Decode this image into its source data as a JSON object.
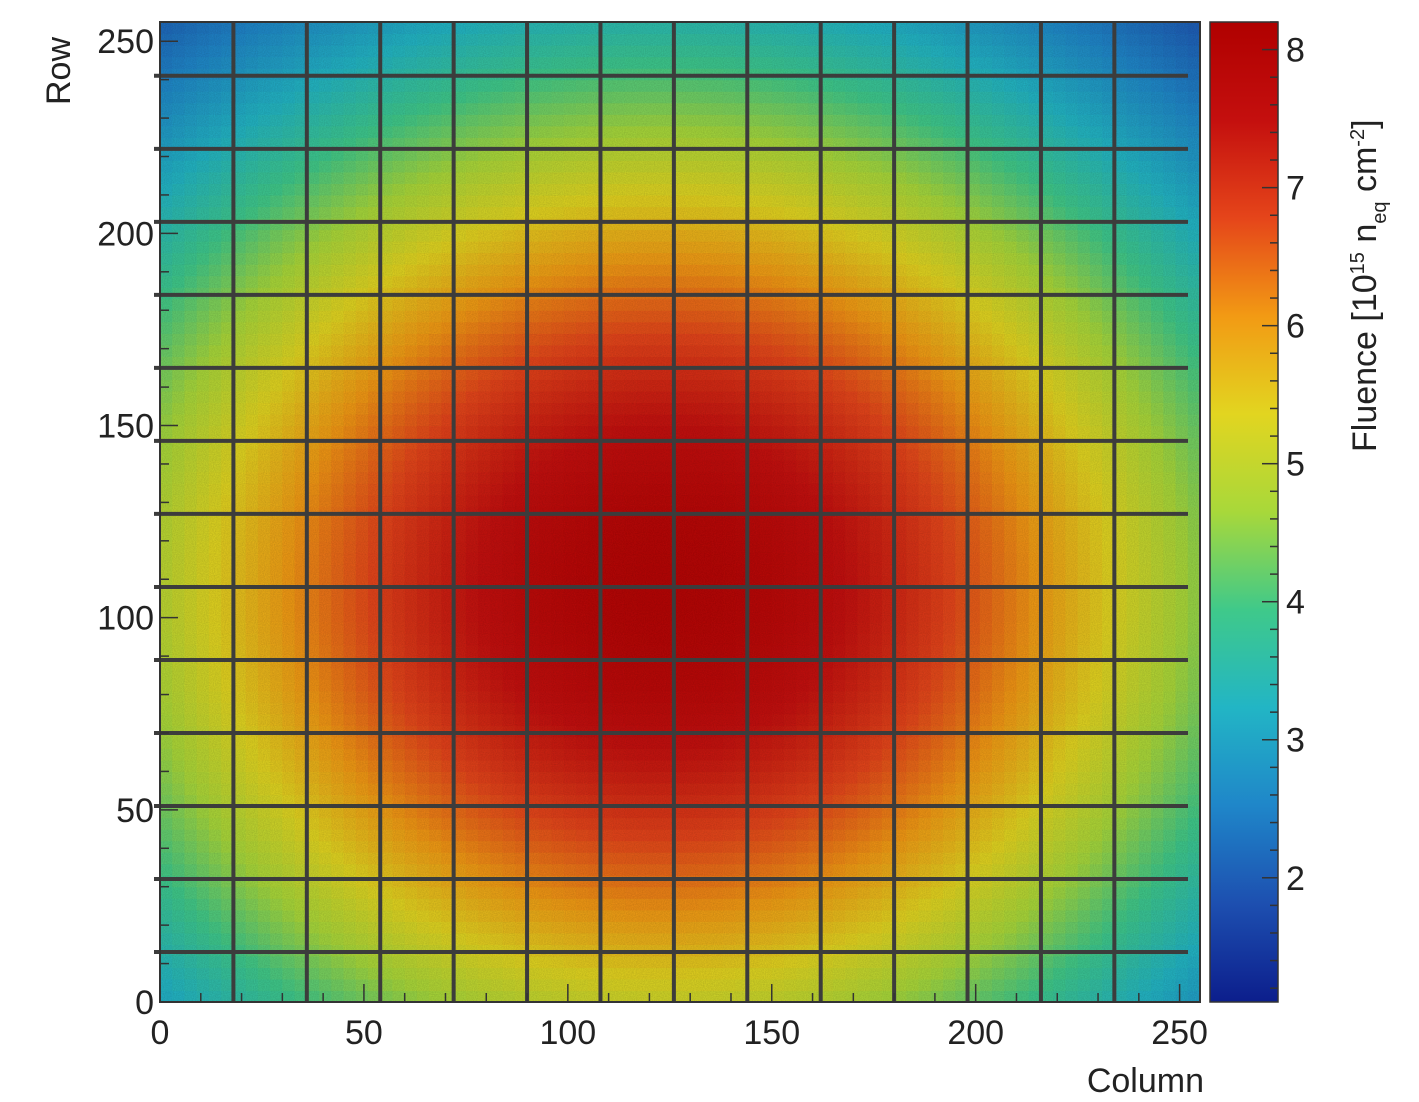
{
  "chart_data": {
    "type": "heatmap",
    "title": "",
    "xlabel": "Column",
    "ylabel": "Row",
    "xlim": [
      0,
      255
    ],
    "ylim": [
      0,
      255
    ],
    "x_ticks": [
      0,
      50,
      100,
      150,
      200,
      250
    ],
    "y_ticks": [
      0,
      50,
      100,
      150,
      200,
      250
    ],
    "colorbar": {
      "label": "Fluence [10",
      "label_exponent": "15",
      "label_n": " n",
      "label_subscript": "eq",
      "label_unit": " cm",
      "label_unit_exponent": "-2",
      "label_close": "]",
      "range": [
        1.1,
        8.2
      ],
      "ticks": [
        2,
        3,
        4,
        5,
        6,
        7,
        8
      ]
    },
    "fluence_model": {
      "peak": 8.0,
      "center_column": 123,
      "center_row": 108,
      "edge_corner_value": 2.2
    },
    "grid_overlay": {
      "vertical_lines_at_column": [
        18,
        36,
        54,
        72,
        90,
        108,
        126,
        144,
        162,
        180,
        198,
        216,
        234
      ],
      "horizontal_lines_at_row": [
        13,
        32,
        51,
        70,
        89,
        108,
        127,
        146,
        165,
        184,
        203,
        222,
        241
      ],
      "color": "#3c3c3c"
    },
    "colormap": [
      "#0c1e8c",
      "#1d4fb0",
      "#1f86c9",
      "#22b5c5",
      "#3fc98a",
      "#a8d83a",
      "#e2d520",
      "#f29a14",
      "#e5451a",
      "#c40f0e",
      "#b00000"
    ]
  }
}
